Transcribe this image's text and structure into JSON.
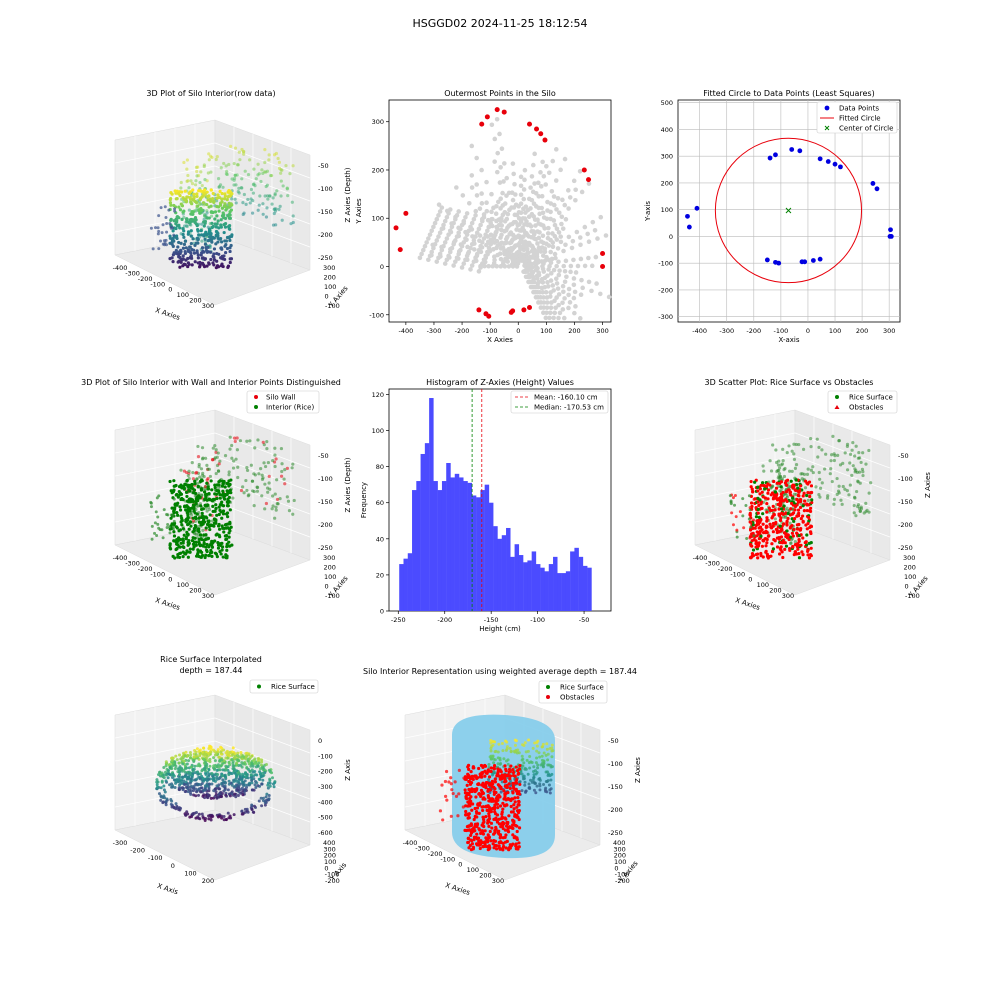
{
  "figure": {
    "suptitle": "HSGGD02 2024-11-25 18:12:54"
  },
  "chart_data": [
    {
      "id": "p1",
      "type": "scatter",
      "subtype": "3d",
      "title": "3D Plot of Silo Interior(row data)",
      "xlabel": "X Axies",
      "ylabel": "Y Axies",
      "zlabel": "Z Axies (Depth)",
      "x_ticks": [
        "-400",
        "-300",
        "-200",
        "-100",
        "0",
        "100",
        "200",
        "300"
      ],
      "y_ticks": [
        "-100",
        "0",
        "100",
        "200",
        "300"
      ],
      "z_ticks": [
        "-50",
        "-100",
        "-150",
        "-200",
        "-250"
      ],
      "colormap": "viridis"
    },
    {
      "id": "p2",
      "type": "scatter",
      "title": "Outermost Points in the Silo",
      "xlabel": "X Axies",
      "ylabel": "Y Axies",
      "xlim": [
        -460,
        330
      ],
      "ylim": [
        -115,
        345
      ],
      "x_ticks": [
        -400,
        -300,
        -200,
        -100,
        0,
        100,
        200,
        300
      ],
      "y_ticks": [
        -100,
        0,
        100,
        200,
        300
      ],
      "grid": false,
      "series": [
        {
          "color": "#d3d3d3",
          "role": "all points"
        },
        {
          "color": "#e8000b",
          "role": "outermost",
          "points": [
            [
              -435,
              80
            ],
            [
              -420,
              35
            ],
            [
              -400,
              110
            ],
            [
              -130,
              295
            ],
            [
              -110,
              310
            ],
            [
              -75,
              325
            ],
            [
              -50,
              320
            ],
            [
              40,
              295
            ],
            [
              65,
              285
            ],
            [
              80,
              275
            ],
            [
              95,
              262
            ],
            [
              235,
              200
            ],
            [
              250,
              180
            ],
            [
              300,
              27
            ],
            [
              300,
              0
            ],
            [
              -140,
              -90
            ],
            [
              -115,
              -98
            ],
            [
              -105,
              -103
            ],
            [
              -25,
              -95
            ],
            [
              -20,
              -92
            ],
            [
              20,
              -90
            ],
            [
              40,
              -85
            ]
          ]
        }
      ]
    },
    {
      "id": "p3",
      "type": "scatter",
      "title": "Fitted Circle to Data Points (Least Squares)",
      "xlabel": "X-axis",
      "ylabel": "Y-axis",
      "xlim": [
        -480,
        340
      ],
      "ylim": [
        -320,
        510
      ],
      "x_ticks": [
        -400,
        -300,
        -200,
        -100,
        0,
        100,
        200,
        300
      ],
      "y_ticks": [
        -300,
        -200,
        -100,
        0,
        100,
        200,
        300,
        400,
        500
      ],
      "grid": true,
      "legend": [
        "Data Points",
        "Fitted Circle",
        "Center of Circle"
      ],
      "legend_loc": "upper right",
      "circle": {
        "cx": -72,
        "cy": 97,
        "r": 270,
        "color": "#e8000b"
      },
      "center_color": "#008000",
      "points_color": "#0000e0",
      "points": [
        [
          -445,
          75
        ],
        [
          -438,
          35
        ],
        [
          -410,
          105
        ],
        [
          -140,
          293
        ],
        [
          -120,
          305
        ],
        [
          -60,
          325
        ],
        [
          -30,
          320
        ],
        [
          45,
          290
        ],
        [
          75,
          280
        ],
        [
          100,
          270
        ],
        [
          120,
          260
        ],
        [
          240,
          198
        ],
        [
          255,
          178
        ],
        [
          305,
          25
        ],
        [
          303,
          0
        ],
        [
          308,
          0
        ],
        [
          -150,
          -88
        ],
        [
          -120,
          -97
        ],
        [
          -108,
          -100
        ],
        [
          -22,
          -95
        ],
        [
          -12,
          -95
        ],
        [
          20,
          -90
        ],
        [
          45,
          -85
        ]
      ]
    },
    {
      "id": "p4",
      "type": "scatter",
      "subtype": "3d",
      "title": "3D Plot of Silo Interior with Wall and Interior Points Distinguished",
      "xlabel": "X Axies",
      "ylabel": "Y Axies",
      "zlabel": "Z Axies (Depth)",
      "x_ticks": [
        "-400",
        "-300",
        "-200",
        "-100",
        "0",
        "100",
        "200",
        "300"
      ],
      "y_ticks": [
        "-100",
        "0",
        "100",
        "200",
        "300"
      ],
      "z_ticks": [
        "-50",
        "-100",
        "-150",
        "-200",
        "-250"
      ],
      "legend": [
        {
          "label": "Silo Wall",
          "color": "#e8000b"
        },
        {
          "label": "Interior (Rice)",
          "color": "#008000"
        }
      ],
      "legend_loc": "upper right"
    },
    {
      "id": "p5",
      "type": "bar",
      "subtype": "histogram",
      "title": "Histogram of Z-Axies (Height) Values",
      "xlabel": "Height (cm)",
      "ylabel": "Frequency",
      "xlim": [
        -260,
        -21
      ],
      "ylim": [
        0,
        123
      ],
      "x_ticks": [
        -250,
        -200,
        -150,
        -100,
        -50
      ],
      "y_ticks": [
        0,
        20,
        40,
        60,
        80,
        100,
        120
      ],
      "bin_start": -249,
      "bin_width": 4.6,
      "values": [
        26,
        29,
        32,
        67,
        72,
        87,
        93,
        118,
        72,
        67,
        72,
        82,
        74,
        76,
        74,
        72,
        71,
        64,
        63,
        67,
        70,
        60,
        47,
        40,
        42,
        46,
        30,
        37,
        31,
        27,
        28,
        33,
        26,
        24,
        22,
        26,
        30,
        21,
        21,
        22,
        33,
        35,
        30,
        25,
        24
      ],
      "bar_color": "#4b4bff",
      "vlines": [
        {
          "label": "Mean: -160.10 cm",
          "x": -160.1,
          "color": "#e8000b"
        },
        {
          "label": "Median: -170.53 cm",
          "x": -170.53,
          "color": "#008000"
        }
      ],
      "legend_loc": "upper right"
    },
    {
      "id": "p6",
      "type": "scatter",
      "subtype": "3d",
      "title": "3D Scatter Plot: Rice Surface vs Obstacles",
      "xlabel": "X Axies",
      "ylabel": "Y Axies",
      "zlabel": "Z Axies",
      "x_ticks": [
        "-400",
        "-300",
        "-200",
        "-100",
        "0",
        "100",
        "200",
        "300"
      ],
      "y_ticks": [
        "-100",
        "0",
        "100",
        "200",
        "300"
      ],
      "z_ticks": [
        "-50",
        "-100",
        "-150",
        "-200",
        "-250"
      ],
      "legend": [
        {
          "label": "Rice Surface",
          "color": "#008000"
        },
        {
          "label": "Obstacles",
          "color": "#e8000b"
        }
      ],
      "legend_loc": "upper right"
    },
    {
      "id": "p7",
      "type": "scatter",
      "subtype": "3d",
      "title": "Rice Surface Interpolated",
      "subtitle": "depth = 187.44",
      "xlabel": "X Axis",
      "ylabel": "Y Axis",
      "zlabel": "Z Axis",
      "x_ticks": [
        "-300",
        "-200",
        "-100",
        "0",
        "100",
        "200"
      ],
      "y_ticks": [
        "-200",
        "-100",
        "0",
        "100",
        "200",
        "300",
        "400"
      ],
      "z_ticks": [
        "0",
        "-100",
        "-200",
        "-300",
        "-400",
        "-500",
        "-600"
      ],
      "legend": [
        {
          "label": "Rice Surface",
          "color": "#008000"
        }
      ],
      "legend_loc": "upper right"
    },
    {
      "id": "p8",
      "type": "scatter",
      "subtype": "3d",
      "title": "Silo Interior Representation using weighted average depth = 187.44",
      "xlabel": "X Axies",
      "ylabel": "Y Axies",
      "zlabel": "Z Axies",
      "x_ticks": [
        "-400",
        "-300",
        "-200",
        "-100",
        "0",
        "100",
        "200",
        "300"
      ],
      "y_ticks": [
        "-200",
        "-100",
        "0",
        "100",
        "200",
        "300",
        "400"
      ],
      "z_ticks": [
        "-50",
        "-100",
        "-150",
        "-200",
        "-250"
      ],
      "legend": [
        {
          "label": "Rice Surface",
          "color": "#008000"
        },
        {
          "label": "Obstacles",
          "color": "#e8000b"
        }
      ],
      "legend_loc": "upper center"
    }
  ]
}
